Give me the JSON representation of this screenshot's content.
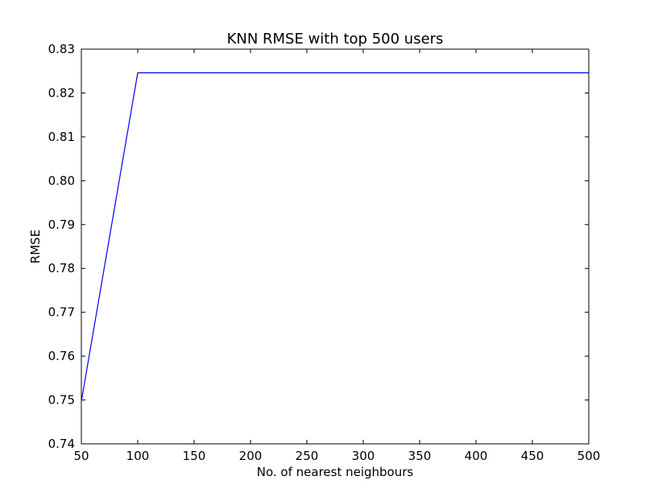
{
  "chart_data": {
    "type": "line",
    "title": "KNN RMSE with top 500 users",
    "xlabel": "No. of nearest neighbours",
    "ylabel": "RMSE",
    "xlim": [
      50,
      500
    ],
    "ylim": [
      0.74,
      0.83
    ],
    "xticks": [
      50,
      100,
      150,
      200,
      250,
      300,
      350,
      400,
      450,
      500
    ],
    "xtick_labels": [
      "50",
      "100",
      "150",
      "200",
      "250",
      "300",
      "350",
      "400",
      "450",
      "500"
    ],
    "yticks": [
      0.74,
      0.75,
      0.76,
      0.77,
      0.78,
      0.79,
      0.8,
      0.81,
      0.82,
      0.83
    ],
    "ytick_labels": [
      "0.74",
      "0.75",
      "0.76",
      "0.77",
      "0.78",
      "0.79",
      "0.80",
      "0.81",
      "0.82",
      "0.83"
    ],
    "grid": false,
    "legend": "none",
    "series": [
      {
        "color": "#0000ff",
        "x": [
          50,
          100,
          150,
          200,
          250,
          300,
          350,
          400,
          450,
          500
        ],
        "y": [
          0.7497,
          0.8246,
          0.8246,
          0.8246,
          0.8246,
          0.8246,
          0.8246,
          0.8246,
          0.8246,
          0.8246
        ]
      }
    ]
  }
}
